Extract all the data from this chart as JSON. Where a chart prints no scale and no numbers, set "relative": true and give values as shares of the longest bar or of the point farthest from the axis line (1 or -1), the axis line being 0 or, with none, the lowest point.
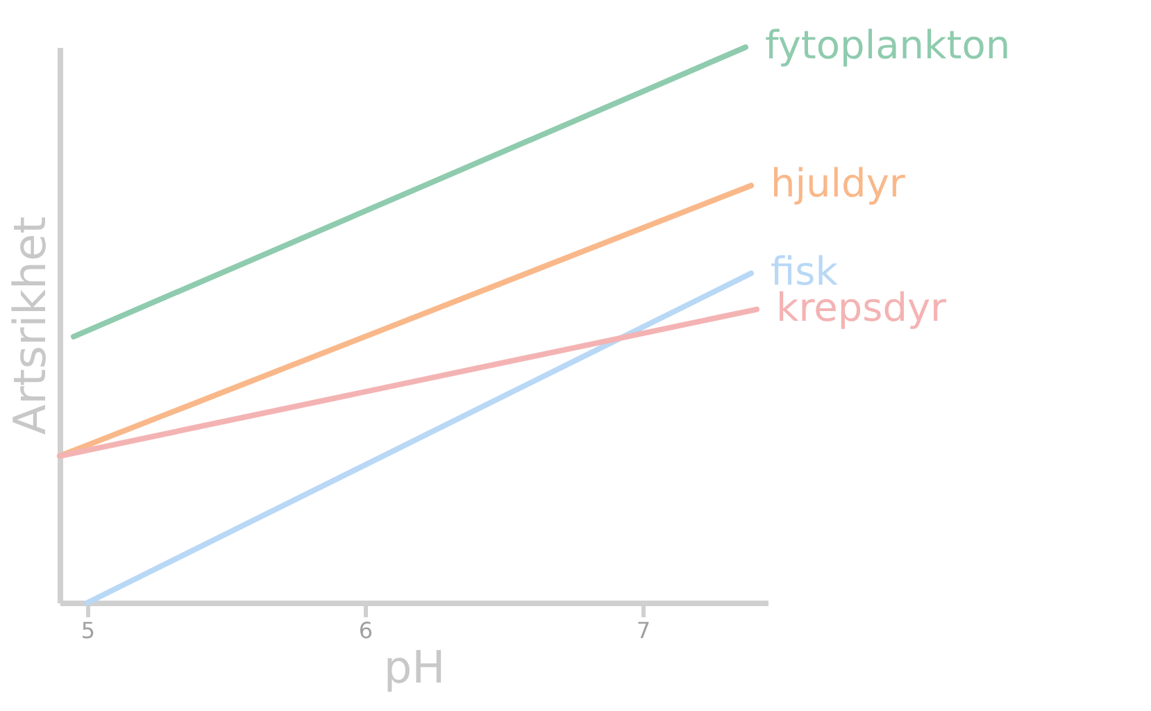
{
  "chart_data": {
    "type": "line",
    "relative": true,
    "xlabel": "pH",
    "ylabel": "Artsrikhet",
    "xlim": [
      4.9,
      7.45
    ],
    "xticks": [
      5,
      6,
      7
    ],
    "legend": false,
    "grid": false,
    "marker": "none",
    "line_style": "solid",
    "series": [
      {
        "name": "fytoplankton",
        "color": "#8fcbae",
        "x": [
          4.95,
          7.37
        ],
        "values": [
          0.479,
          1
        ]
      },
      {
        "name": "hjuldyr",
        "color": "#f9b88a",
        "x": [
          4.9,
          7.39
        ],
        "values": [
          0.264,
          0.751
        ]
      },
      {
        "name": "fisk",
        "color": "#b8d8f5",
        "x": [
          5,
          7.39
        ],
        "values": [
          0,
          0.593
        ]
      },
      {
        "name": "krepsdyr",
        "color": "#f4b3b3",
        "x": [
          4.9,
          7.41
        ],
        "values": [
          0.264,
          0.528
        ]
      }
    ]
  }
}
